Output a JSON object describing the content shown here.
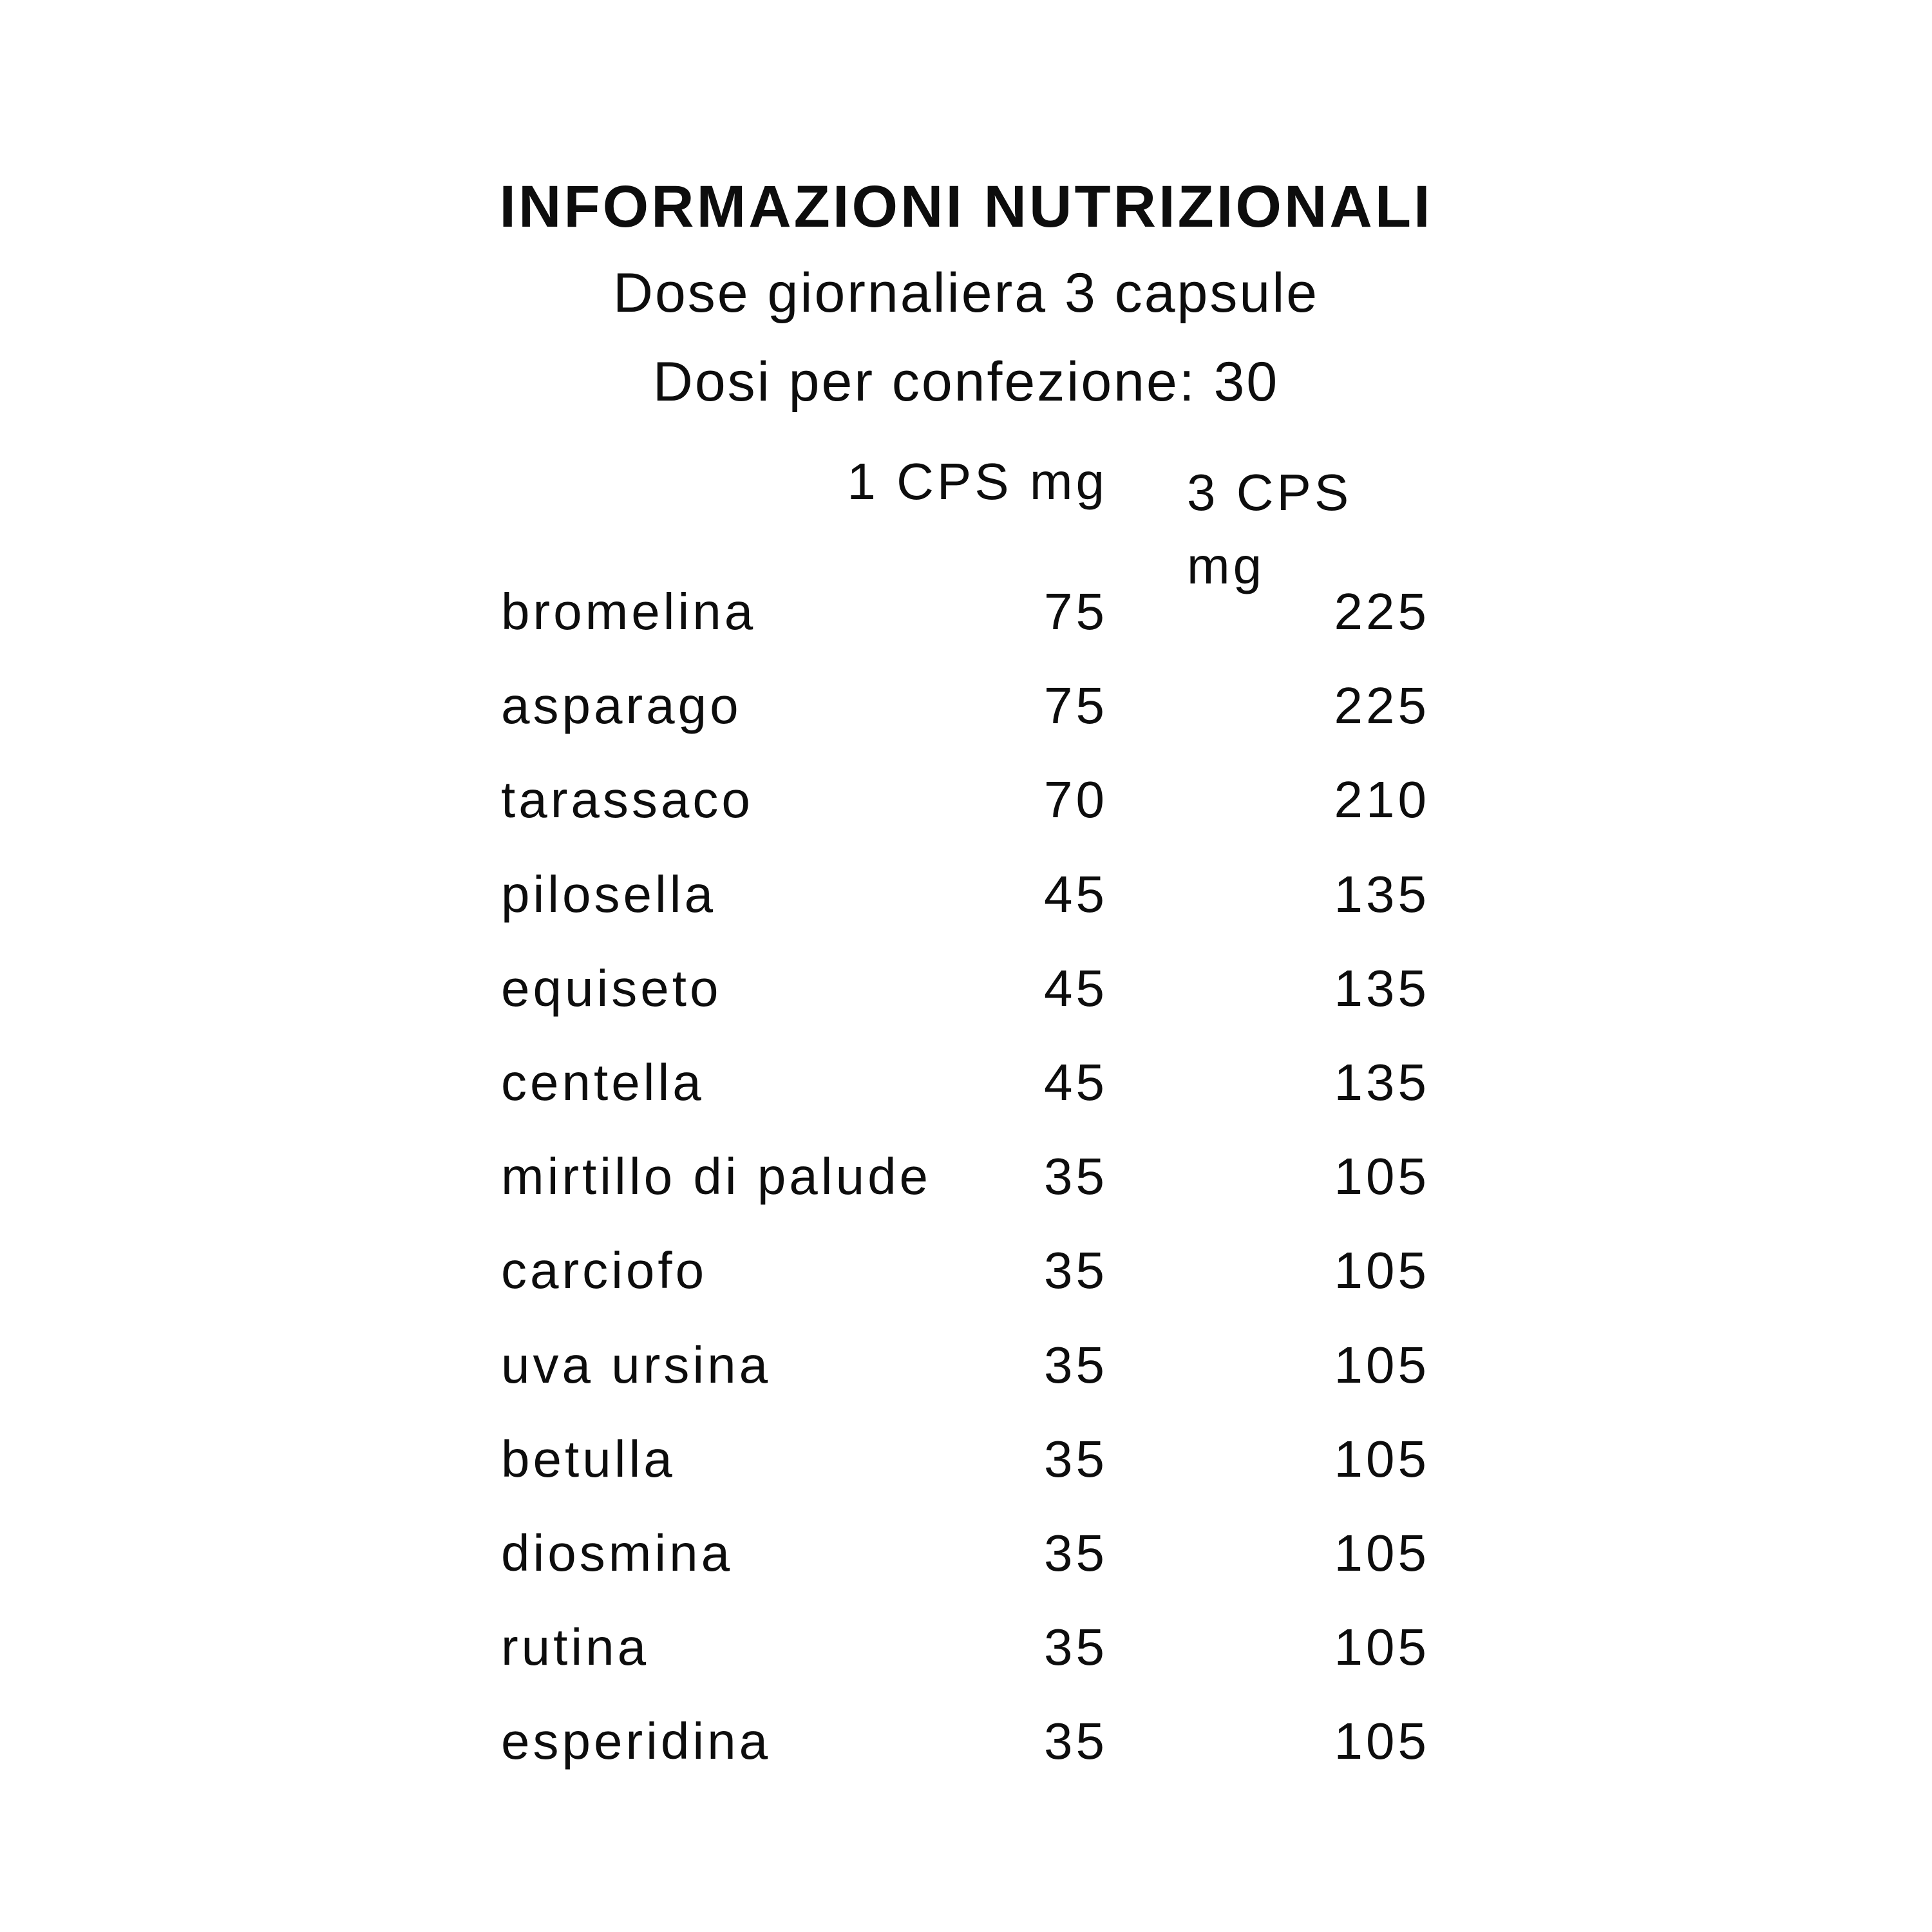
{
  "header": {
    "title": "INFORMAZIONI NUTRIZIONALI",
    "subtitle1": "Dose giornaliera 3 capsule",
    "subtitle2": "Dosi per confezione: 30"
  },
  "table": {
    "col1_header": "1 CPS mg",
    "col2_header": "3 CPS mg",
    "rows": [
      {
        "name": "bromelina",
        "cps1": "75",
        "cps3": "225"
      },
      {
        "name": "asparago",
        "cps1": "75",
        "cps3": "225"
      },
      {
        "name": "tarassaco",
        "cps1": "70",
        "cps3": "210"
      },
      {
        "name": "pilosella",
        "cps1": "45",
        "cps3": "135"
      },
      {
        "name": "equiseto",
        "cps1": "45",
        "cps3": "135"
      },
      {
        "name": "centella",
        "cps1": "45",
        "cps3": "135"
      },
      {
        "name": "mirtillo di palude",
        "cps1": "35",
        "cps3": "105"
      },
      {
        "name": "carciofo",
        "cps1": "35",
        "cps3": "105"
      },
      {
        "name": "uva ursina",
        "cps1": "35",
        "cps3": "105"
      },
      {
        "name": "betulla",
        "cps1": "35",
        "cps3": "105"
      },
      {
        "name": "diosmina",
        "cps1": "35",
        "cps3": "105"
      },
      {
        "name": "rutina",
        "cps1": "35",
        "cps3": "105"
      },
      {
        "name": "esperidina",
        "cps1": "35",
        "cps3": "105"
      }
    ]
  },
  "colors": {
    "text": "#0d0d0d",
    "background": "#ffffff"
  }
}
